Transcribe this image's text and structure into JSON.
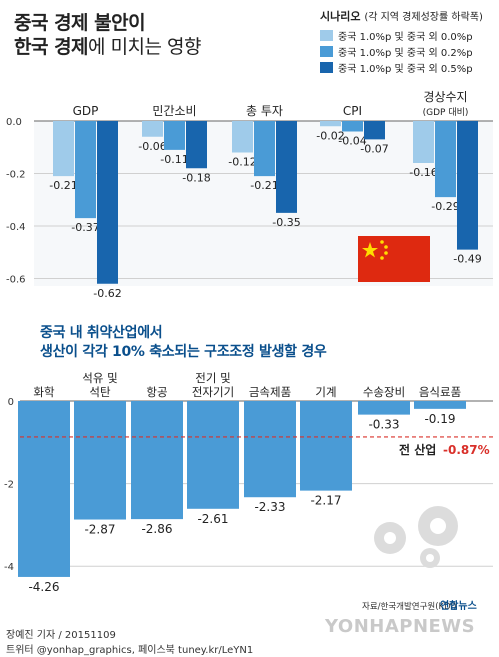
{
  "title_line1": "중국 경제 불안이",
  "title_line2_bold": "한국 경제",
  "title_line2_rest": "에 미치는 영향",
  "legend": {
    "title": "시나리오",
    "subtitle": "(각 지역 경제성장률 하락폭)",
    "items": [
      {
        "label": "중국 1.0%p 및 중국 외 0.0%p",
        "color": "#9fcbea"
      },
      {
        "label": "중국 1.0%p 및 중국 외 0.2%p",
        "color": "#4a9bd6"
      },
      {
        "label": "중국 1.0%p 및 중국 외 0.5%p",
        "color": "#1865ad"
      }
    ]
  },
  "subtitle_line1": "중국 내 취약산업에서",
  "subtitle_line2": "생산이 각각 10% 축소되는 구조조정 발생할 경우",
  "source": "자료/한국개발연구원(KDI)",
  "logo_text": "연합뉴스",
  "watermark": "YONHAPNEWS",
  "footer_line1": "장예진 기자 / 20151109",
  "footer_line2": "트위터 @yonhap_graphics, 페이스북 tuney.kr/LeYN1",
  "chart_data": [
    {
      "type": "bar",
      "categories": [
        "GDP",
        "민간소비",
        "총 투자",
        "CPI",
        "경상수지"
      ],
      "category_sublabels": [
        "",
        "",
        "",
        "",
        "(GDP 대비)"
      ],
      "series": [
        {
          "name": "중국 1.0%p 및 중국 외 0.0%p",
          "values": [
            -0.21,
            -0.06,
            -0.12,
            -0.02,
            -0.16
          ]
        },
        {
          "name": "중국 1.0%p 및 중국 외 0.2%p",
          "values": [
            -0.37,
            -0.11,
            -0.21,
            -0.04,
            -0.29
          ]
        },
        {
          "name": "중국 1.0%p 및 중국 외 0.5%p",
          "values": [
            -0.62,
            -0.18,
            -0.35,
            -0.07,
            -0.49
          ]
        }
      ],
      "value_labels": [
        [
          "-0.21",
          "-0.06",
          "-0.12",
          "-0.02",
          "-0.16"
        ],
        [
          "-0.37",
          "-0.11",
          "-0.21",
          "-0.04",
          "-0.29"
        ],
        [
          "-0.62",
          "-0.18",
          "-0.35",
          "-0.07",
          "-0.49"
        ]
      ],
      "yticks": [
        0,
        -0.2,
        -0.4,
        -0.6
      ],
      "ytick_labels": [
        "0.0",
        "-0.2",
        "-0.4",
        "-0.6"
      ],
      "ylim": [
        -0.7,
        0
      ],
      "grid": true
    },
    {
      "type": "bar",
      "categories": [
        "화학",
        "석유 및\n석탄",
        "항공",
        "전기 및\n전자기기",
        "금속제품",
        "기계",
        "수송장비",
        "음식료품"
      ],
      "values": [
        -4.26,
        -2.87,
        -2.86,
        -2.61,
        -2.33,
        -2.17,
        -0.33,
        -0.19
      ],
      "value_labels": [
        "-4.26",
        "-2.87",
        "-2.86",
        "-2.61",
        "-2.33",
        "-2.17",
        "-0.33",
        "-0.19"
      ],
      "reference_line": {
        "label": "전 산업",
        "value": -0.87,
        "value_label": "-0.87%"
      },
      "yticks": [
        0,
        -2,
        -4
      ],
      "ytick_labels": [
        "0",
        "-2",
        "-4"
      ],
      "ylim": [
        -4.5,
        0
      ],
      "grid": true
    }
  ]
}
